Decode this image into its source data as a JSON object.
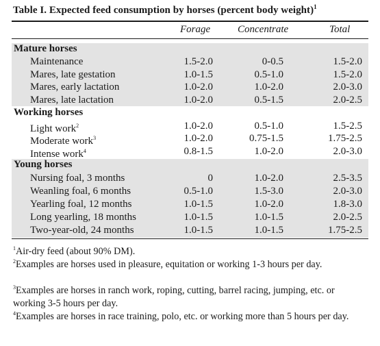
{
  "table": {
    "title": "Table I.  Expected feed consumption by horses (percent body weight)",
    "title_note": "1",
    "columns": [
      "Forage",
      "Concentrate",
      "Total"
    ],
    "sections": [
      {
        "heading": "Mature horses",
        "rows": [
          {
            "label": "Maintenance",
            "note": "",
            "forage": "1.5-2.0",
            "concentrate": "0-0.5",
            "total": "1.5-2.0"
          },
          {
            "label": "Mares, late gestation",
            "note": "",
            "forage": "1.0-1.5",
            "concentrate": "0.5-1.0",
            "total": "1.5-2.0"
          },
          {
            "label": "Mares, early lactation",
            "note": "",
            "forage": "1.0-2.0",
            "concentrate": "1.0-2.0",
            "total": "2.0-3.0"
          },
          {
            "label": "Mares, late lactation",
            "note": "",
            "forage": "1.0-2.0",
            "concentrate": "0.5-1.5",
            "total": "2.0-2.5"
          }
        ]
      },
      {
        "heading": "Working horses",
        "rows": [
          {
            "label": "Light work",
            "note": "2",
            "forage": "1.0-2.0",
            "concentrate": "0.5-1.0",
            "total": "1.5-2.5"
          },
          {
            "label": "Moderate work",
            "note": "3",
            "forage": "1.0-2.0",
            "concentrate": "0.75-1.5",
            "total": "1.75-2.5"
          },
          {
            "label": "Intense work",
            "note": "4",
            "forage": "0.8-1.5",
            "concentrate": "1.0-2.0",
            "total": "2.0-3.0"
          }
        ]
      },
      {
        "heading": "Young horses",
        "rows": [
          {
            "label": "Nursing foal, 3 months",
            "note": "",
            "forage": "0",
            "concentrate": "1.0-2.0",
            "total": "2.5-3.5"
          },
          {
            "label": "Weanling foal, 6 months",
            "note": "",
            "forage": "0.5-1.0",
            "concentrate": "1.5-3.0",
            "total": "2.0-3.0"
          },
          {
            "label": "Yearling foal, 12 months",
            "note": "",
            "forage": "1.0-1.5",
            "concentrate": "1.0-2.0",
            "total": "1.8-3.0"
          },
          {
            "label": "Long yearling, 18 months",
            "note": "",
            "forage": "1.0-1.5",
            "concentrate": "1.0-1.5",
            "total": "2.0-2.5"
          },
          {
            "label": "Two-year-old, 24 months",
            "note": "",
            "forage": "1.0-1.5",
            "concentrate": "1.0-1.5",
            "total": "1.75-2.5"
          }
        ]
      }
    ],
    "footnotes": [
      {
        "mark": "1",
        "text": "Air-dry feed (about 90% DM)."
      },
      {
        "mark": "2",
        "text": "Examples are horses used in pleasure, equitation or working 1-3 hours per day."
      },
      {
        "mark": "3",
        "text": "Examples are horses in ranch work, roping, cutting, barrel racing, jumping, etc. or working 3-5 hours per day."
      },
      {
        "mark": "4",
        "text": "Examples are horses in race training, polo, etc. or working more than 5 hours per day."
      }
    ]
  }
}
